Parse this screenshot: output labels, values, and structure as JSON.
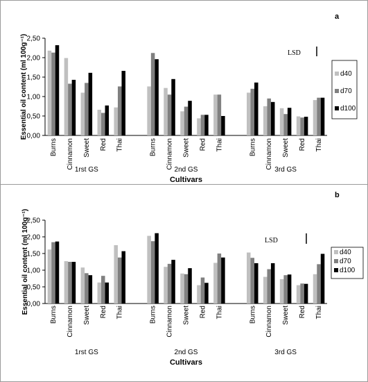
{
  "chart_data": [
    {
      "type": "bar",
      "panel_letter": "a",
      "ylabel": "Essential oil content  (ml 100g⁻¹)",
      "xlabel": "Cultivars",
      "ylim": [
        0,
        2.5
      ],
      "yticks": [
        "0,00",
        "0,50",
        "1,00",
        "1,50",
        "2,00",
        "2,50"
      ],
      "grid": false,
      "legend_position": "right",
      "lsd_label": "LSD",
      "groups": [
        {
          "label": "1rst GS",
          "categories": [
            "Burns",
            "Cinnamon",
            "Sweet",
            "Red",
            "Thai"
          ]
        },
        {
          "label": "2nd GS",
          "categories": [
            "Burns",
            "Cinnamon",
            "Sweet",
            "Red",
            "Thai"
          ]
        },
        {
          "label": "3rd GS",
          "categories": [
            "Burns",
            "Cinnamon",
            "Sweet",
            "Red",
            "Thai"
          ]
        }
      ],
      "series": [
        {
          "name": "d40",
          "color": "#c0c0c0",
          "values": [
            2.18,
            1.99,
            1.1,
            0.66,
            0.72,
            1.26,
            1.22,
            0.62,
            0.44,
            1.05,
            1.1,
            0.75,
            0.7,
            0.49,
            0.91
          ]
        },
        {
          "name": "d70",
          "color": "#808080",
          "values": [
            2.13,
            1.33,
            1.35,
            0.58,
            1.26,
            2.12,
            1.05,
            0.74,
            0.53,
            1.05,
            1.2,
            0.95,
            0.55,
            0.46,
            0.97
          ]
        },
        {
          "name": "d100",
          "color": "#000000",
          "values": [
            2.32,
            1.43,
            1.61,
            0.77,
            1.66,
            1.96,
            1.45,
            0.89,
            0.53,
            0.5,
            1.36,
            0.86,
            0.71,
            0.48,
            0.97
          ]
        }
      ]
    },
    {
      "type": "bar",
      "panel_letter": "b",
      "ylabel": "Essential oil content (ml 100g⁻¹)",
      "xlabel": "Cultivars",
      "ylim": [
        0,
        2.5
      ],
      "yticks": [
        "0,00",
        "0,50",
        "1,00",
        "1,50",
        "2,00",
        "2,50"
      ],
      "grid": false,
      "legend_position": "right",
      "lsd_label": "LSD",
      "groups": [
        {
          "label": "1rst GS",
          "categories": [
            "Burns",
            "Cinnamon",
            "Sweet",
            "Red",
            "Thai"
          ]
        },
        {
          "label": "2nd GS",
          "categories": [
            "Burns",
            "Cinnamon",
            "Sweet",
            "Red",
            "Thai"
          ]
        },
        {
          "label": "3rd GS",
          "categories": [
            "Burns",
            "Cinnamon",
            "Sweet",
            "Red",
            "Thai"
          ]
        }
      ],
      "series": [
        {
          "name": "d40",
          "color": "#c0c0c0",
          "values": [
            1.62,
            1.27,
            1.08,
            0.63,
            1.75,
            2.03,
            1.1,
            0.9,
            0.55,
            1.22,
            1.53,
            0.8,
            0.73,
            0.55,
            0.88
          ]
        },
        {
          "name": "d70",
          "color": "#808080",
          "values": [
            1.84,
            1.25,
            0.91,
            0.83,
            1.38,
            1.87,
            1.19,
            0.88,
            0.78,
            1.5,
            1.37,
            1.03,
            0.85,
            0.6,
            1.18
          ]
        },
        {
          "name": "d100",
          "color": "#000000",
          "values": [
            1.86,
            1.25,
            0.85,
            0.63,
            1.57,
            2.11,
            1.31,
            1.06,
            0.62,
            1.38,
            1.21,
            1.21,
            0.87,
            0.59,
            1.49
          ]
        }
      ]
    }
  ]
}
